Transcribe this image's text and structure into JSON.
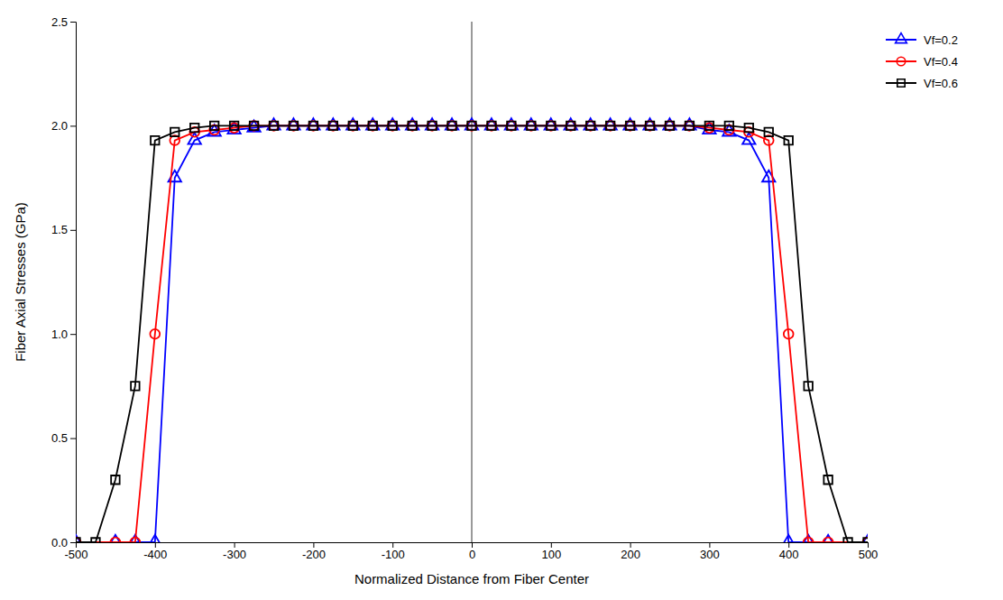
{
  "chart_data": {
    "type": "line",
    "xlabel": "Normalized Distance from Fiber Center",
    "ylabel": "Fiber Axial Stresses (GPa)",
    "xlim": [
      -500,
      500
    ],
    "ylim": [
      0,
      2.5
    ],
    "xticks": [
      -500,
      -400,
      -300,
      -200,
      -100,
      0,
      100,
      200,
      300,
      400,
      500
    ],
    "yticks": [
      {
        "value": 0,
        "label": "0.0"
      },
      {
        "value": 0.5,
        "label": "0.5"
      },
      {
        "value": 1,
        "label": "1.0"
      },
      {
        "value": 1.5,
        "label": "1.5"
      },
      {
        "value": 2,
        "label": "2.0"
      },
      {
        "value": 2.5,
        "label": "2.5"
      }
    ],
    "grid": false,
    "legend": "right",
    "vline_x": 0,
    "series": [
      {
        "name": "Vf=0.2",
        "color": "blue",
        "marker": "triangle-up",
        "line_style": "solid",
        "x": [
          -500,
          -450,
          -425,
          -400,
          -375,
          -350,
          -325,
          -300,
          -275,
          -250,
          -225,
          -200,
          -175,
          -150,
          -125,
          -100,
          -75,
          -50,
          -25,
          0,
          25,
          50,
          75,
          100,
          125,
          150,
          175,
          200,
          225,
          250,
          275,
          300,
          325,
          350,
          375,
          400,
          425,
          450,
          500
        ],
        "values": [
          0.0,
          0.0,
          0.0,
          0.0,
          1.75,
          1.93,
          1.97,
          1.98,
          1.99,
          2.0,
          2.0,
          2.0,
          2.0,
          2.0,
          2.0,
          2.0,
          2.0,
          2.0,
          2.0,
          2.0,
          2.0,
          2.0,
          2.0,
          2.0,
          2.0,
          2.0,
          2.0,
          2.0,
          2.0,
          2.0,
          2.0,
          1.98,
          1.97,
          1.93,
          1.75,
          0.0,
          0.0,
          0.0,
          0.0
        ]
      },
      {
        "name": "Vf=0.4",
        "color": "red",
        "marker": "circle",
        "line_style": "solid",
        "x": [
          -500,
          -450,
          -425,
          -400,
          -375,
          -350,
          -325,
          -300,
          -275,
          -250,
          -225,
          -200,
          -175,
          -150,
          -125,
          -100,
          -75,
          -50,
          -25,
          0,
          25,
          50,
          75,
          100,
          125,
          150,
          175,
          200,
          225,
          250,
          275,
          300,
          325,
          350,
          375,
          400,
          425,
          450,
          500
        ],
        "values": [
          0.0,
          0.0,
          0.0,
          1.0,
          1.93,
          1.97,
          1.98,
          1.99,
          2.0,
          2.0,
          2.0,
          2.0,
          2.0,
          2.0,
          2.0,
          2.0,
          2.0,
          2.0,
          2.0,
          2.0,
          2.0,
          2.0,
          2.0,
          2.0,
          2.0,
          2.0,
          2.0,
          2.0,
          2.0,
          2.0,
          2.0,
          1.99,
          1.98,
          1.97,
          1.93,
          1.0,
          0.0,
          0.0,
          0.0
        ]
      },
      {
        "name": "Vf=0.6",
        "color": "black",
        "marker": "square",
        "line_style": "solid",
        "x": [
          -500,
          -475,
          -450,
          -425,
          -400,
          -375,
          -350,
          -325,
          -300,
          -275,
          -250,
          -225,
          -200,
          -175,
          -150,
          -125,
          -100,
          -75,
          -50,
          -25,
          0,
          25,
          50,
          75,
          100,
          125,
          150,
          175,
          200,
          225,
          250,
          275,
          300,
          325,
          350,
          375,
          400,
          425,
          450,
          475,
          500
        ],
        "values": [
          0.0,
          0.0,
          0.3,
          0.75,
          1.93,
          1.97,
          1.99,
          2.0,
          2.0,
          2.0,
          2.0,
          2.0,
          2.0,
          2.0,
          2.0,
          2.0,
          2.0,
          2.0,
          2.0,
          2.0,
          2.0,
          2.0,
          2.0,
          2.0,
          2.0,
          2.0,
          2.0,
          2.0,
          2.0,
          2.0,
          2.0,
          2.0,
          2.0,
          2.0,
          1.99,
          1.97,
          1.93,
          0.75,
          0.3,
          0.0,
          0.0
        ]
      }
    ]
  }
}
